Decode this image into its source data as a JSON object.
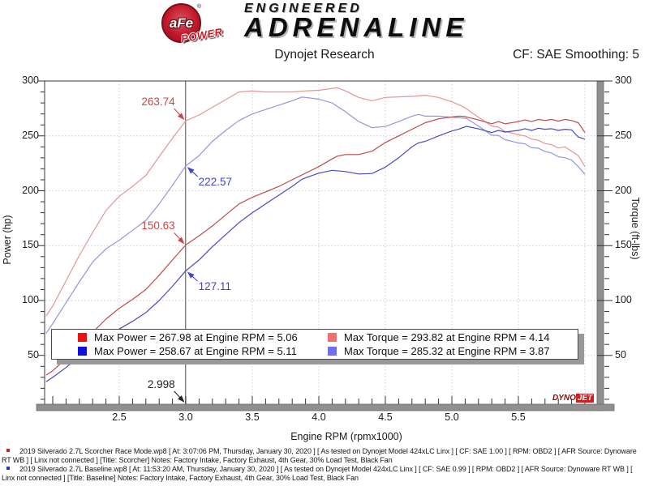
{
  "header": {
    "logo_afe": "aFe",
    "logo_reg": "®",
    "logo_power": "POWER",
    "brand_line1": "ENGINEERED",
    "brand_line2": "ADRENALINE"
  },
  "titlebar": {
    "title": "Dynojet Research",
    "cf": "CF: SAE Smoothing: 5"
  },
  "watermark": {
    "part1": "DYNO",
    "part2": "JET"
  },
  "chart_data": {
    "type": "line",
    "title": "Dynojet Research",
    "xlabel": "Engine RPM (rpmx1000)",
    "ylabel_left": "Power (hp)",
    "ylabel_right": "Torque (ft-lbs)",
    "xlim": [
      1.94,
      6.1
    ],
    "ylim": [
      0,
      300
    ],
    "x_ticks": [
      "2.5",
      "3.0",
      "3.5",
      "4.0",
      "4.5",
      "5.0",
      "5.5"
    ],
    "y_ticks": [
      "300",
      "250",
      "200",
      "150",
      "100",
      "50"
    ],
    "y_tick_values": [
      300,
      250,
      200,
      150,
      100,
      50
    ],
    "grid": true,
    "cursor_rpm": 2.998,
    "cursor_label": "2.998",
    "legend": [
      {
        "swatch": "#ee1111",
        "label": "Max Power = 267.98 at Engine RPM = 5.06"
      },
      {
        "swatch": "#ef7070",
        "label": "Max Torque = 293.82 at Engine RPM = 4.14"
      },
      {
        "swatch": "#1111dd",
        "label": "Max Power = 258.67 at Engine RPM = 5.11"
      },
      {
        "swatch": "#7070ef",
        "label": "Max Torque = 285.32 at Engine RPM = 3.87"
      }
    ],
    "annotations": [
      {
        "text": "263.74",
        "rpm": 2.998,
        "value": 263.74,
        "series": "Scorcher Torque",
        "color": "#cc4444",
        "placement": "above-left"
      },
      {
        "text": "222.57",
        "rpm": 2.998,
        "value": 222.57,
        "series": "Baseline Torque",
        "color": "#4444cc",
        "placement": "below-right"
      },
      {
        "text": "150.63",
        "rpm": 2.998,
        "value": 150.63,
        "series": "Scorcher Power",
        "color": "#cc4444",
        "placement": "above-left"
      },
      {
        "text": "127.11",
        "rpm": 2.998,
        "value": 127.11,
        "series": "Baseline Power",
        "color": "#4444cc",
        "placement": "below-right"
      },
      {
        "text": "2.998",
        "rpm": 2.998,
        "value": 0,
        "series": "x-axis",
        "color": "#222222",
        "placement": "above-left"
      }
    ],
    "series": [
      {
        "name": "Scorcher Torque (ft-lbs)",
        "color": "#e59595",
        "points": [
          [
            1.95,
            86
          ],
          [
            2.0,
            95
          ],
          [
            2.1,
            118
          ],
          [
            2.2,
            141
          ],
          [
            2.3,
            162
          ],
          [
            2.4,
            182
          ],
          [
            2.5,
            195
          ],
          [
            2.6,
            204
          ],
          [
            2.7,
            214
          ],
          [
            2.8,
            231
          ],
          [
            2.9,
            248
          ],
          [
            3.0,
            263.74
          ],
          [
            3.1,
            269
          ],
          [
            3.2,
            276
          ],
          [
            3.3,
            283
          ],
          [
            3.4,
            290
          ],
          [
            3.5,
            291
          ],
          [
            3.6,
            290
          ],
          [
            3.7,
            290
          ],
          [
            3.8,
            290
          ],
          [
            3.9,
            291
          ],
          [
            4.0,
            291.5
          ],
          [
            4.1,
            293.3
          ],
          [
            4.14,
            293.82
          ],
          [
            4.2,
            291
          ],
          [
            4.3,
            285
          ],
          [
            4.4,
            282
          ],
          [
            4.5,
            285
          ],
          [
            4.6,
            285.5
          ],
          [
            4.7,
            286
          ],
          [
            4.8,
            287
          ],
          [
            4.9,
            285
          ],
          [
            5.0,
            281
          ],
          [
            5.06,
            278
          ],
          [
            5.1,
            275.5
          ],
          [
            5.2,
            267
          ],
          [
            5.3,
            259
          ],
          [
            5.35,
            258
          ],
          [
            5.4,
            254
          ],
          [
            5.5,
            251
          ],
          [
            5.55,
            250
          ],
          [
            5.6,
            247
          ],
          [
            5.65,
            246
          ],
          [
            5.7,
            243
          ],
          [
            5.75,
            242
          ],
          [
            5.8,
            239
          ],
          [
            5.85,
            240
          ],
          [
            5.9,
            236
          ],
          [
            5.95,
            232
          ],
          [
            6.0,
            222
          ]
        ]
      },
      {
        "name": "Baseline Torque (ft-lbs)",
        "color": "#9595e0",
        "points": [
          [
            1.95,
            70
          ],
          [
            2.0,
            79
          ],
          [
            2.1,
            98
          ],
          [
            2.2,
            117
          ],
          [
            2.3,
            135
          ],
          [
            2.4,
            147
          ],
          [
            2.5,
            155
          ],
          [
            2.6,
            164
          ],
          [
            2.7,
            173
          ],
          [
            2.8,
            188
          ],
          [
            2.9,
            205
          ],
          [
            3.0,
            222.57
          ],
          [
            3.1,
            232
          ],
          [
            3.2,
            245
          ],
          [
            3.3,
            255
          ],
          [
            3.4,
            264
          ],
          [
            3.5,
            270
          ],
          [
            3.6,
            274
          ],
          [
            3.7,
            278
          ],
          [
            3.8,
            282
          ],
          [
            3.87,
            285.32
          ],
          [
            3.9,
            285
          ],
          [
            4.0,
            283.5
          ],
          [
            4.1,
            280
          ],
          [
            4.2,
            272
          ],
          [
            4.3,
            263
          ],
          [
            4.4,
            257.5
          ],
          [
            4.5,
            258.5
          ],
          [
            4.6,
            263
          ],
          [
            4.7,
            268
          ],
          [
            4.75,
            269.5
          ],
          [
            4.8,
            268
          ],
          [
            4.9,
            268
          ],
          [
            5.0,
            267
          ],
          [
            5.11,
            265.9
          ],
          [
            5.2,
            259
          ],
          [
            5.3,
            250.6
          ],
          [
            5.35,
            250.4
          ],
          [
            5.4,
            246.5
          ],
          [
            5.5,
            243.6
          ],
          [
            5.55,
            242.7
          ],
          [
            5.6,
            239.2
          ],
          [
            5.65,
            238.8
          ],
          [
            5.7,
            235.9
          ],
          [
            5.75,
            234.3
          ],
          [
            5.8,
            231
          ],
          [
            5.85,
            230
          ],
          [
            5.9,
            228
          ],
          [
            5.95,
            222
          ],
          [
            6.0,
            215
          ]
        ]
      },
      {
        "name": "Scorcher Power (hp)",
        "color": "#c04a4a",
        "points": [
          [
            1.95,
            32
          ],
          [
            2.0,
            36
          ],
          [
            2.1,
            47
          ],
          [
            2.2,
            59
          ],
          [
            2.3,
            71
          ],
          [
            2.4,
            83
          ],
          [
            2.5,
            93
          ],
          [
            2.6,
            101
          ],
          [
            2.7,
            110
          ],
          [
            2.8,
            123
          ],
          [
            2.9,
            137
          ],
          [
            3.0,
            150.63
          ],
          [
            3.1,
            159
          ],
          [
            3.2,
            168
          ],
          [
            3.3,
            178
          ],
          [
            3.4,
            188
          ],
          [
            3.5,
            194
          ],
          [
            3.6,
            199
          ],
          [
            3.7,
            204
          ],
          [
            3.8,
            210
          ],
          [
            3.9,
            216
          ],
          [
            4.0,
            222
          ],
          [
            4.1,
            229
          ],
          [
            4.14,
            231.6
          ],
          [
            4.2,
            233
          ],
          [
            4.3,
            233
          ],
          [
            4.4,
            236
          ],
          [
            4.5,
            244
          ],
          [
            4.6,
            250
          ],
          [
            4.7,
            256
          ],
          [
            4.8,
            262
          ],
          [
            4.9,
            265.5
          ],
          [
            5.0,
            267.2
          ],
          [
            5.06,
            267.98
          ],
          [
            5.1,
            267.5
          ],
          [
            5.2,
            264.5
          ],
          [
            5.3,
            261
          ],
          [
            5.35,
            263
          ],
          [
            5.4,
            261
          ],
          [
            5.5,
            263
          ],
          [
            5.55,
            264.5
          ],
          [
            5.6,
            263
          ],
          [
            5.65,
            265
          ],
          [
            5.7,
            264
          ],
          [
            5.75,
            265
          ],
          [
            5.8,
            263.5
          ],
          [
            5.85,
            265
          ],
          [
            5.9,
            264
          ],
          [
            5.95,
            262
          ],
          [
            6.0,
            253
          ]
        ]
      },
      {
        "name": "Baseline Power (hp)",
        "color": "#4a4ac0",
        "points": [
          [
            1.95,
            26
          ],
          [
            2.0,
            30
          ],
          [
            2.1,
            39
          ],
          [
            2.2,
            49
          ],
          [
            2.3,
            59
          ],
          [
            2.4,
            67
          ],
          [
            2.5,
            74
          ],
          [
            2.6,
            81
          ],
          [
            2.7,
            89
          ],
          [
            2.8,
            100
          ],
          [
            2.9,
            113
          ],
          [
            3.0,
            127.11
          ],
          [
            3.1,
            137
          ],
          [
            3.2,
            149
          ],
          [
            3.3,
            160
          ],
          [
            3.4,
            171
          ],
          [
            3.5,
            180
          ],
          [
            3.6,
            188
          ],
          [
            3.7,
            196
          ],
          [
            3.8,
            204
          ],
          [
            3.87,
            210.2
          ],
          [
            3.9,
            211.7
          ],
          [
            4.0,
            216
          ],
          [
            4.1,
            218.6
          ],
          [
            4.2,
            217.5
          ],
          [
            4.3,
            215.3
          ],
          [
            4.4,
            215.7
          ],
          [
            4.5,
            221.5
          ],
          [
            4.6,
            230
          ],
          [
            4.7,
            240
          ],
          [
            4.75,
            243.7
          ],
          [
            4.8,
            245
          ],
          [
            4.9,
            250
          ],
          [
            5.0,
            254.5
          ],
          [
            5.05,
            256
          ],
          [
            5.11,
            258.67
          ],
          [
            5.2,
            256.4
          ],
          [
            5.3,
            253
          ],
          [
            5.35,
            255
          ],
          [
            5.4,
            253.5
          ],
          [
            5.5,
            255
          ],
          [
            5.55,
            256.5
          ],
          [
            5.6,
            255
          ],
          [
            5.65,
            257
          ],
          [
            5.7,
            256
          ],
          [
            5.75,
            256.5
          ],
          [
            5.8,
            255
          ],
          [
            5.85,
            256
          ],
          [
            5.9,
            255.5
          ],
          [
            5.95,
            249
          ],
          [
            6.0,
            247
          ]
        ]
      }
    ]
  },
  "footer": {
    "runs": [
      {
        "bullet_color": "#cc2222",
        "text": "2019 Silverado 2.7L Scorcher Race Mode.wp8 [ At: 3:07:06 PM, Thursday, January 30, 2020 ] [ As tested on Dynojet Model 424xLC Linx ] [ CF: SAE 1.00 ] [ RPM: OBD2 ] [ AFR Source: Dynoware RT WB ] [ Linx not connected ] [Title: Scorcher]  Notes: Factory Intake, Factory Exhaust, 4th Gear, 30% Load Test, Black Fan"
      },
      {
        "bullet_color": "#2233cc",
        "text": "2019 Silverado 2.7L Baseline.wp8 [ At: 11:53:20 AM, Thursday, January 30, 2020 ] [ As tested on Dynojet Model 424xLC Linx ] [ CF: SAE 0.99 ] [ RPM: OBD2 ] [ AFR Source: Dynoware RT WB ] [ Linx not connected ] [Title: Baseline]  Notes: Factory Intake, Factory Exhaust, 4th Gear, 30% Load Test, Black Fan"
      }
    ]
  }
}
